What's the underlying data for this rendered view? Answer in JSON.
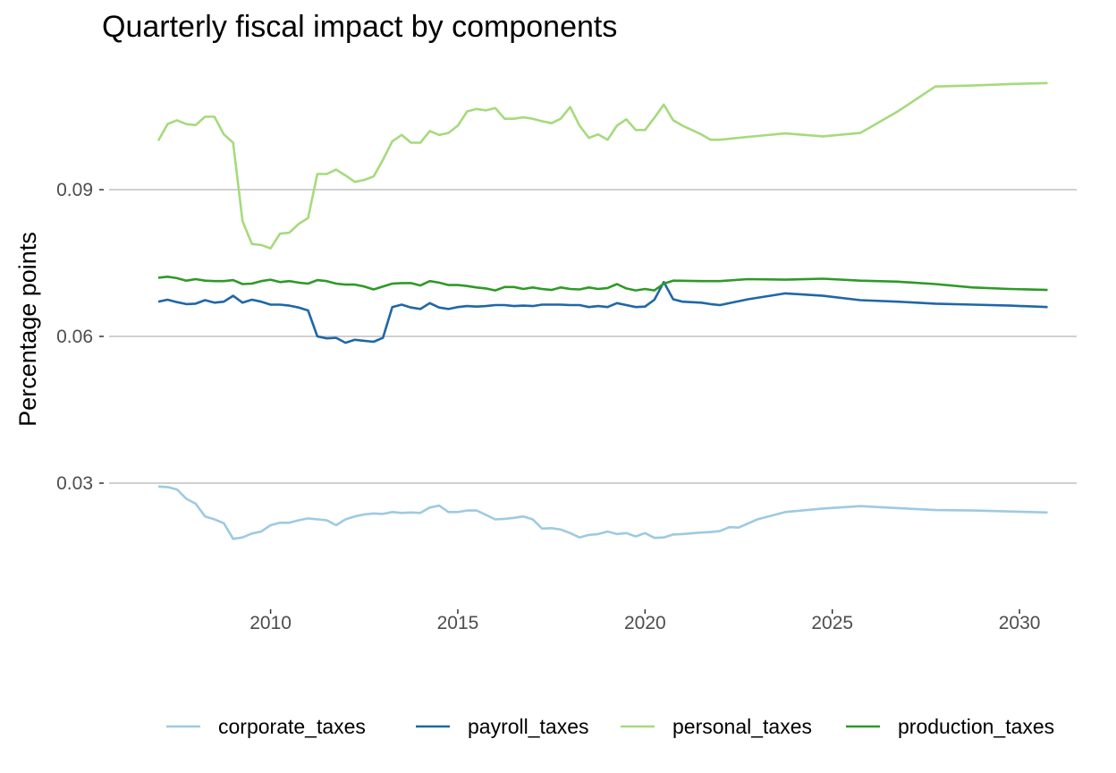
{
  "chart_data": {
    "type": "line",
    "title": "Quarterly fiscal impact  by components",
    "xlabel": "",
    "ylabel": "Percentage points",
    "xlim": [
      2006.75,
      2030.75
    ],
    "ylim": [
      0.0055,
      0.1205
    ],
    "x_ticks": [
      2010,
      2015,
      2020,
      2025,
      2030
    ],
    "y_ticks": [
      0.03,
      0.06,
      0.09
    ],
    "y_tick_labels": [
      "0.03",
      "0.06",
      "0.09"
    ],
    "grid": "horizontal major",
    "legend_position": "bottom",
    "series": [
      {
        "name": "corporate_taxes",
        "color": "#9ecae1",
        "points": [
          [
            2007.0,
            0.0293
          ],
          [
            2007.25,
            0.0292
          ],
          [
            2007.5,
            0.0287
          ],
          [
            2007.75,
            0.0268
          ],
          [
            2008.0,
            0.0258
          ],
          [
            2008.25,
            0.0232
          ],
          [
            2008.5,
            0.0226
          ],
          [
            2008.75,
            0.0218
          ],
          [
            2009.0,
            0.0186
          ],
          [
            2009.25,
            0.0189
          ],
          [
            2009.5,
            0.0197
          ],
          [
            2009.75,
            0.0201
          ],
          [
            2010.0,
            0.0214
          ],
          [
            2010.25,
            0.0219
          ],
          [
            2010.5,
            0.0219
          ],
          [
            2010.75,
            0.0224
          ],
          [
            2011.0,
            0.0228
          ],
          [
            2011.25,
            0.0226
          ],
          [
            2011.5,
            0.0224
          ],
          [
            2011.75,
            0.0214
          ],
          [
            2012.0,
            0.0226
          ],
          [
            2012.25,
            0.0232
          ],
          [
            2012.5,
            0.0236
          ],
          [
            2012.75,
            0.0238
          ],
          [
            2013.0,
            0.0237
          ],
          [
            2013.25,
            0.0241
          ],
          [
            2013.5,
            0.0239
          ],
          [
            2013.75,
            0.024
          ],
          [
            2014.0,
            0.0239
          ],
          [
            2014.25,
            0.025
          ],
          [
            2014.5,
            0.0254
          ],
          [
            2014.75,
            0.0241
          ],
          [
            2015.0,
            0.0241
          ],
          [
            2015.25,
            0.0244
          ],
          [
            2015.5,
            0.0244
          ],
          [
            2015.75,
            0.0235
          ],
          [
            2016.0,
            0.0226
          ],
          [
            2016.25,
            0.0227
          ],
          [
            2016.5,
            0.0229
          ],
          [
            2016.75,
            0.0232
          ],
          [
            2017.0,
            0.0226
          ],
          [
            2017.25,
            0.0207
          ],
          [
            2017.5,
            0.0208
          ],
          [
            2017.75,
            0.0205
          ],
          [
            2018.0,
            0.0198
          ],
          [
            2018.25,
            0.0189
          ],
          [
            2018.5,
            0.0194
          ],
          [
            2018.75,
            0.0196
          ],
          [
            2019.0,
            0.0201
          ],
          [
            2019.25,
            0.0196
          ],
          [
            2019.5,
            0.0198
          ],
          [
            2019.75,
            0.0191
          ],
          [
            2020.0,
            0.0198
          ],
          [
            2020.25,
            0.0188
          ],
          [
            2020.5,
            0.0189
          ],
          [
            2020.75,
            0.0195
          ],
          [
            2021.0,
            0.0196
          ],
          [
            2021.5,
            0.0199
          ],
          [
            2021.75,
            0.02
          ],
          [
            2022.0,
            0.0202
          ],
          [
            2022.25,
            0.021
          ],
          [
            2022.5,
            0.0209
          ],
          [
            2023.0,
            0.0226
          ],
          [
            2023.75,
            0.0241
          ],
          [
            2024.75,
            0.0248
          ],
          [
            2025.75,
            0.0253
          ],
          [
            2026.75,
            0.0249
          ],
          [
            2027.75,
            0.0245
          ],
          [
            2028.75,
            0.0244
          ],
          [
            2029.75,
            0.0242
          ],
          [
            2030.75,
            0.024
          ]
        ]
      },
      {
        "name": "payroll_taxes",
        "color": "#1f67a8",
        "points": [
          [
            2007.0,
            0.0671
          ],
          [
            2007.25,
            0.0675
          ],
          [
            2007.5,
            0.067
          ],
          [
            2007.75,
            0.0666
          ],
          [
            2008.0,
            0.0667
          ],
          [
            2008.25,
            0.0674
          ],
          [
            2008.5,
            0.0669
          ],
          [
            2008.75,
            0.0671
          ],
          [
            2009.0,
            0.0683
          ],
          [
            2009.25,
            0.0669
          ],
          [
            2009.5,
            0.0675
          ],
          [
            2009.75,
            0.0671
          ],
          [
            2010.0,
            0.0665
          ],
          [
            2010.25,
            0.0665
          ],
          [
            2010.5,
            0.0663
          ],
          [
            2010.75,
            0.0659
          ],
          [
            2011.0,
            0.0653
          ],
          [
            2011.25,
            0.06
          ],
          [
            2011.5,
            0.0596
          ],
          [
            2011.75,
            0.0597
          ],
          [
            2012.0,
            0.0587
          ],
          [
            2012.25,
            0.0593
          ],
          [
            2012.5,
            0.0591
          ],
          [
            2012.75,
            0.0589
          ],
          [
            2013.0,
            0.0597
          ],
          [
            2013.25,
            0.066
          ],
          [
            2013.5,
            0.0665
          ],
          [
            2013.75,
            0.0659
          ],
          [
            2014.0,
            0.0656
          ],
          [
            2014.25,
            0.0668
          ],
          [
            2014.5,
            0.0659
          ],
          [
            2014.75,
            0.0656
          ],
          [
            2015.0,
            0.066
          ],
          [
            2015.25,
            0.0662
          ],
          [
            2015.5,
            0.0661
          ],
          [
            2015.75,
            0.0662
          ],
          [
            2016.0,
            0.0664
          ],
          [
            2016.25,
            0.0664
          ],
          [
            2016.5,
            0.0662
          ],
          [
            2016.75,
            0.0663
          ],
          [
            2017.0,
            0.0662
          ],
          [
            2017.25,
            0.0665
          ],
          [
            2017.5,
            0.0665
          ],
          [
            2017.75,
            0.0665
          ],
          [
            2018.0,
            0.0664
          ],
          [
            2018.25,
            0.0664
          ],
          [
            2018.5,
            0.066
          ],
          [
            2018.75,
            0.0662
          ],
          [
            2019.0,
            0.066
          ],
          [
            2019.25,
            0.0668
          ],
          [
            2019.5,
            0.0664
          ],
          [
            2019.75,
            0.066
          ],
          [
            2020.0,
            0.0661
          ],
          [
            2020.25,
            0.0675
          ],
          [
            2020.5,
            0.0711
          ],
          [
            2020.75,
            0.0676
          ],
          [
            2021.0,
            0.0671
          ],
          [
            2021.5,
            0.0669
          ],
          [
            2021.75,
            0.0666
          ],
          [
            2022.0,
            0.0664
          ],
          [
            2022.75,
            0.0676
          ],
          [
            2023.75,
            0.0688
          ],
          [
            2024.75,
            0.0683
          ],
          [
            2025.75,
            0.0674
          ],
          [
            2026.75,
            0.0671
          ],
          [
            2027.75,
            0.0667
          ],
          [
            2028.75,
            0.0665
          ],
          [
            2029.75,
            0.0663
          ],
          [
            2030.75,
            0.066
          ]
        ]
      },
      {
        "name": "personal_taxes",
        "color": "#a6da7c",
        "points": [
          [
            2007.0,
            0.1
          ],
          [
            2007.25,
            0.1034
          ],
          [
            2007.5,
            0.1042
          ],
          [
            2007.75,
            0.1034
          ],
          [
            2008.0,
            0.1032
          ],
          [
            2008.25,
            0.1049
          ],
          [
            2008.5,
            0.1049
          ],
          [
            2008.75,
            0.1013
          ],
          [
            2009.0,
            0.0996
          ],
          [
            2009.25,
            0.0836
          ],
          [
            2009.5,
            0.0789
          ],
          [
            2009.75,
            0.0787
          ],
          [
            2010.0,
            0.078
          ],
          [
            2010.25,
            0.081
          ],
          [
            2010.5,
            0.0812
          ],
          [
            2010.75,
            0.083
          ],
          [
            2011.0,
            0.0842
          ],
          [
            2011.25,
            0.0932
          ],
          [
            2011.5,
            0.0932
          ],
          [
            2011.75,
            0.0941
          ],
          [
            2012.0,
            0.0929
          ],
          [
            2012.25,
            0.0916
          ],
          [
            2012.5,
            0.092
          ],
          [
            2012.75,
            0.0927
          ],
          [
            2013.0,
            0.0961
          ],
          [
            2013.25,
            0.0999
          ],
          [
            2013.5,
            0.1012
          ],
          [
            2013.75,
            0.0996
          ],
          [
            2014.0,
            0.0996
          ],
          [
            2014.25,
            0.102
          ],
          [
            2014.5,
            0.1012
          ],
          [
            2014.75,
            0.1016
          ],
          [
            2015.0,
            0.1031
          ],
          [
            2015.25,
            0.106
          ],
          [
            2015.5,
            0.1065
          ],
          [
            2015.75,
            0.1062
          ],
          [
            2016.0,
            0.1067
          ],
          [
            2016.25,
            0.1045
          ],
          [
            2016.5,
            0.1045
          ],
          [
            2016.75,
            0.1048
          ],
          [
            2017.0,
            0.1045
          ],
          [
            2017.25,
            0.104
          ],
          [
            2017.5,
            0.1036
          ],
          [
            2017.75,
            0.1045
          ],
          [
            2018.0,
            0.1069
          ],
          [
            2018.25,
            0.1031
          ],
          [
            2018.5,
            0.1006
          ],
          [
            2018.75,
            0.1013
          ],
          [
            2019.0,
            0.1002
          ],
          [
            2019.25,
            0.1031
          ],
          [
            2019.5,
            0.1044
          ],
          [
            2019.75,
            0.1022
          ],
          [
            2020.0,
            0.1022
          ],
          [
            2020.25,
            0.1047
          ],
          [
            2020.5,
            0.1074
          ],
          [
            2020.75,
            0.1042
          ],
          [
            2021.0,
            0.1031
          ],
          [
            2021.5,
            0.1013
          ],
          [
            2021.75,
            0.1002
          ],
          [
            2022.0,
            0.1002
          ],
          [
            2022.75,
            0.1008
          ],
          [
            2023.75,
            0.1015
          ],
          [
            2024.75,
            0.1009
          ],
          [
            2025.75,
            0.1016
          ],
          [
            2026.75,
            0.106
          ],
          [
            2027.75,
            0.1111
          ],
          [
            2028.75,
            0.1113
          ],
          [
            2029.75,
            0.1116
          ],
          [
            2030.75,
            0.1118
          ]
        ]
      },
      {
        "name": "production_taxes",
        "color": "#2e9a27",
        "points": [
          [
            2007.0,
            0.072
          ],
          [
            2007.25,
            0.0722
          ],
          [
            2007.5,
            0.0719
          ],
          [
            2007.75,
            0.0714
          ],
          [
            2008.0,
            0.0717
          ],
          [
            2008.25,
            0.0714
          ],
          [
            2008.5,
            0.0713
          ],
          [
            2008.75,
            0.0713
          ],
          [
            2009.0,
            0.0715
          ],
          [
            2009.25,
            0.0707
          ],
          [
            2009.5,
            0.0708
          ],
          [
            2009.75,
            0.0713
          ],
          [
            2010.0,
            0.0716
          ],
          [
            2010.25,
            0.0711
          ],
          [
            2010.5,
            0.0713
          ],
          [
            2010.75,
            0.071
          ],
          [
            2011.0,
            0.0708
          ],
          [
            2011.25,
            0.0715
          ],
          [
            2011.5,
            0.0713
          ],
          [
            2011.75,
            0.0708
          ],
          [
            2012.0,
            0.0706
          ],
          [
            2012.25,
            0.0706
          ],
          [
            2012.5,
            0.0702
          ],
          [
            2012.75,
            0.0696
          ],
          [
            2013.0,
            0.0702
          ],
          [
            2013.25,
            0.0708
          ],
          [
            2013.5,
            0.0709
          ],
          [
            2013.75,
            0.0709
          ],
          [
            2014.0,
            0.0704
          ],
          [
            2014.25,
            0.0713
          ],
          [
            2014.5,
            0.071
          ],
          [
            2014.75,
            0.0705
          ],
          [
            2015.0,
            0.0705
          ],
          [
            2015.25,
            0.0703
          ],
          [
            2015.5,
            0.07
          ],
          [
            2015.75,
            0.0698
          ],
          [
            2016.0,
            0.0694
          ],
          [
            2016.25,
            0.0701
          ],
          [
            2016.5,
            0.0701
          ],
          [
            2016.75,
            0.0697
          ],
          [
            2017.0,
            0.07
          ],
          [
            2017.25,
            0.0697
          ],
          [
            2017.5,
            0.0695
          ],
          [
            2017.75,
            0.07
          ],
          [
            2018.0,
            0.0697
          ],
          [
            2018.25,
            0.0696
          ],
          [
            2018.5,
            0.07
          ],
          [
            2018.75,
            0.0697
          ],
          [
            2019.0,
            0.0699
          ],
          [
            2019.25,
            0.0707
          ],
          [
            2019.5,
            0.0698
          ],
          [
            2019.75,
            0.0694
          ],
          [
            2020.0,
            0.0697
          ],
          [
            2020.25,
            0.0694
          ],
          [
            2020.5,
            0.0708
          ],
          [
            2020.75,
            0.0714
          ],
          [
            2021.5,
            0.0713
          ],
          [
            2022.0,
            0.0713
          ],
          [
            2022.75,
            0.0717
          ],
          [
            2023.75,
            0.0716
          ],
          [
            2024.75,
            0.0718
          ],
          [
            2025.75,
            0.0714
          ],
          [
            2026.75,
            0.0712
          ],
          [
            2027.75,
            0.0707
          ],
          [
            2028.75,
            0.07
          ],
          [
            2029.75,
            0.0697
          ],
          [
            2030.75,
            0.0695
          ]
        ]
      }
    ]
  }
}
